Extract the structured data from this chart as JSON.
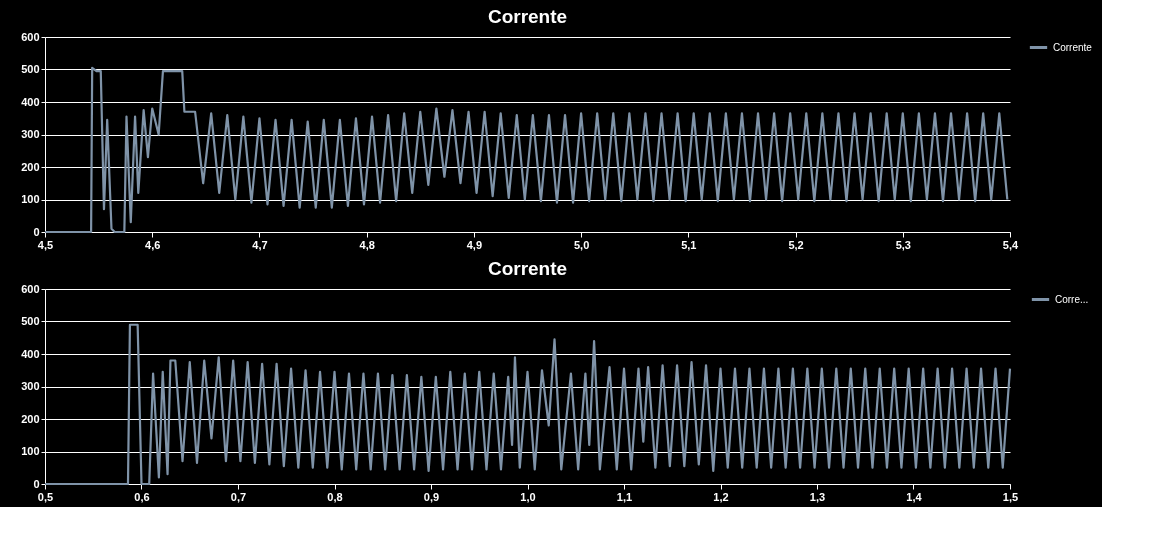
{
  "chart_data": [
    {
      "type": "line",
      "title": "Corrente",
      "legend": "right",
      "grid": "y",
      "marker": "none",
      "line_style": "solid",
      "xlim": [
        4.5,
        5.4
      ],
      "xticks": [
        {
          "value": 4.5,
          "label": "4,5"
        },
        {
          "value": 4.6,
          "label": "4,6"
        },
        {
          "value": 4.7,
          "label": "4,7"
        },
        {
          "value": 4.8,
          "label": "4,8"
        },
        {
          "value": 4.9,
          "label": "4,9"
        },
        {
          "value": 5.0,
          "label": "5,0"
        },
        {
          "value": 5.1,
          "label": "5,1"
        },
        {
          "value": 5.2,
          "label": "5,2"
        },
        {
          "value": 5.3,
          "label": "5,3"
        },
        {
          "value": 5.4,
          "label": "5,4"
        }
      ],
      "ylim": [
        0,
        600
      ],
      "yticks": [
        0,
        100,
        200,
        300,
        400,
        500,
        600
      ],
      "series": [
        {
          "name": "Corrente",
          "color": "#7f93a8",
          "x": [
            4.5,
            4.543,
            4.544,
            4.548,
            4.552,
            4.555,
            4.558,
            4.562,
            4.565,
            4.574,
            4.576,
            4.58,
            4.584,
            4.587,
            4.592,
            4.596,
            4.6,
            4.606,
            4.61,
            4.628,
            4.63,
            4.64,
            4.6475,
            4.655,
            4.6625,
            4.67,
            4.6775,
            4.685,
            4.6925,
            4.7,
            4.7075,
            4.715,
            4.7225,
            4.73,
            4.7375,
            4.745,
            4.7525,
            4.76,
            4.7675,
            4.775,
            4.7825,
            4.79,
            4.7975,
            4.805,
            4.8125,
            4.82,
            4.8275,
            4.835,
            4.8425,
            4.85,
            4.8575,
            4.865,
            4.8725,
            4.88,
            4.8875,
            4.895,
            4.9025,
            4.91,
            4.9175,
            4.925,
            4.9325,
            4.94,
            4.9475,
            4.955,
            4.9625,
            4.97,
            4.9775,
            4.985,
            4.9925,
            5.0,
            5.0075,
            5.015,
            5.0225,
            5.03,
            5.0375,
            5.045,
            5.0525,
            5.06,
            5.0675,
            5.075,
            5.0825,
            5.09,
            5.0975,
            5.105,
            5.1125,
            5.12,
            5.1275,
            5.135,
            5.1425,
            5.15,
            5.1575,
            5.165,
            5.1725,
            5.18,
            5.1875,
            5.195,
            5.2025,
            5.21,
            5.2175,
            5.225,
            5.2325,
            5.24,
            5.2475,
            5.255,
            5.2625,
            5.27,
            5.2775,
            5.285,
            5.2925,
            5.3,
            5.3075,
            5.315,
            5.3225,
            5.33,
            5.3375,
            5.345,
            5.3525,
            5.36,
            5.3675,
            5.375,
            5.3825,
            5.39,
            5.3975
          ],
          "values": [
            0,
            0,
            505,
            495,
            495,
            70,
            345,
            10,
            0,
            0,
            355,
            30,
            355,
            120,
            375,
            230,
            380,
            300,
            495,
            495,
            370,
            370,
            150,
            365,
            120,
            360,
            100,
            355,
            90,
            350,
            85,
            345,
            80,
            345,
            75,
            340,
            75,
            345,
            75,
            345,
            80,
            350,
            85,
            355,
            90,
            360,
            95,
            365,
            120,
            370,
            145,
            380,
            170,
            375,
            150,
            370,
            120,
            370,
            110,
            365,
            105,
            360,
            100,
            360,
            95,
            360,
            90,
            360,
            90,
            365,
            95,
            365,
            100,
            365,
            95,
            365,
            100,
            365,
            95,
            365,
            100,
            365,
            95,
            365,
            100,
            365,
            95,
            365,
            100,
            365,
            95,
            365,
            100,
            365,
            95,
            365,
            100,
            365,
            95,
            365,
            100,
            365,
            95,
            365,
            100,
            365,
            95,
            365,
            100,
            365,
            95,
            365,
            100,
            365,
            95,
            365,
            100,
            365,
            95,
            365,
            100,
            365,
            100
          ]
        }
      ]
    },
    {
      "type": "line",
      "title": "Corrente",
      "legend": "right",
      "grid": "y",
      "marker": "none",
      "line_style": "solid",
      "xlim": [
        0.5,
        1.5
      ],
      "xticks": [
        {
          "value": 0.5,
          "label": "0,5"
        },
        {
          "value": 0.6,
          "label": "0,6"
        },
        {
          "value": 0.7,
          "label": "0,7"
        },
        {
          "value": 0.8,
          "label": "0,8"
        },
        {
          "value": 0.9,
          "label": "0,9"
        },
        {
          "value": 1.0,
          "label": "1,0"
        },
        {
          "value": 1.1,
          "label": "1,1"
        },
        {
          "value": 1.2,
          "label": "1,2"
        },
        {
          "value": 1.3,
          "label": "1,3"
        },
        {
          "value": 1.4,
          "label": "1,4"
        },
        {
          "value": 1.5,
          "label": "1,5"
        }
      ],
      "ylim": [
        0,
        600
      ],
      "yticks": [
        0,
        100,
        200,
        300,
        400,
        500,
        600
      ],
      "series": [
        {
          "name": "Corre...",
          "color": "#7f93a8",
          "x": [
            0.5,
            0.586,
            0.588,
            0.596,
            0.6,
            0.608,
            0.612,
            0.618,
            0.622,
            0.627,
            0.63,
            0.635,
            0.6425,
            0.65,
            0.6575,
            0.665,
            0.6725,
            0.68,
            0.6875,
            0.695,
            0.7025,
            0.71,
            0.7175,
            0.725,
            0.7325,
            0.74,
            0.7475,
            0.755,
            0.7625,
            0.77,
            0.7775,
            0.785,
            0.7925,
            0.8,
            0.8075,
            0.815,
            0.8225,
            0.83,
            0.8375,
            0.845,
            0.8525,
            0.86,
            0.8675,
            0.875,
            0.8825,
            0.89,
            0.8975,
            0.905,
            0.9125,
            0.92,
            0.9275,
            0.935,
            0.9425,
            0.95,
            0.9575,
            0.965,
            0.9725,
            0.98,
            0.984,
            0.987,
            0.992,
            1.0,
            1.0075,
            1.015,
            1.022,
            1.028,
            1.035,
            1.045,
            1.0525,
            1.06,
            1.064,
            1.069,
            1.075,
            1.085,
            1.0925,
            1.1,
            1.1075,
            1.115,
            1.12,
            1.125,
            1.1325,
            1.14,
            1.1475,
            1.155,
            1.1625,
            1.17,
            1.1775,
            1.185,
            1.1925,
            1.2,
            1.2075,
            1.215,
            1.2225,
            1.23,
            1.2375,
            1.245,
            1.2525,
            1.26,
            1.2675,
            1.275,
            1.2825,
            1.29,
            1.2975,
            1.305,
            1.3125,
            1.32,
            1.3275,
            1.335,
            1.3425,
            1.35,
            1.3575,
            1.365,
            1.3725,
            1.38,
            1.3875,
            1.395,
            1.4025,
            1.41,
            1.4175,
            1.425,
            1.4325,
            1.44,
            1.4475,
            1.455,
            1.4625,
            1.47,
            1.4775,
            1.485,
            1.4925,
            1.5
          ],
          "values": [
            0,
            0,
            490,
            490,
            0,
            0,
            340,
            20,
            345,
            30,
            380,
            380,
            70,
            375,
            65,
            380,
            140,
            390,
            70,
            380,
            70,
            375,
            65,
            370,
            60,
            370,
            55,
            355,
            50,
            350,
            50,
            345,
            50,
            345,
            45,
            340,
            45,
            340,
            45,
            340,
            45,
            335,
            45,
            335,
            45,
            330,
            40,
            330,
            45,
            345,
            45,
            340,
            45,
            345,
            45,
            340,
            45,
            330,
            120,
            390,
            50,
            345,
            45,
            350,
            180,
            445,
            45,
            340,
            45,
            340,
            120,
            440,
            45,
            360,
            45,
            355,
            45,
            355,
            130,
            360,
            50,
            365,
            55,
            365,
            55,
            375,
            60,
            365,
            40,
            355,
            50,
            355,
            50,
            355,
            50,
            355,
            50,
            355,
            50,
            355,
            50,
            355,
            50,
            355,
            50,
            355,
            50,
            355,
            50,
            355,
            50,
            355,
            50,
            355,
            50,
            355,
            50,
            355,
            50,
            355,
            50,
            355,
            50,
            355,
            50,
            355,
            50,
            355,
            50,
            355
          ]
        }
      ]
    }
  ]
}
